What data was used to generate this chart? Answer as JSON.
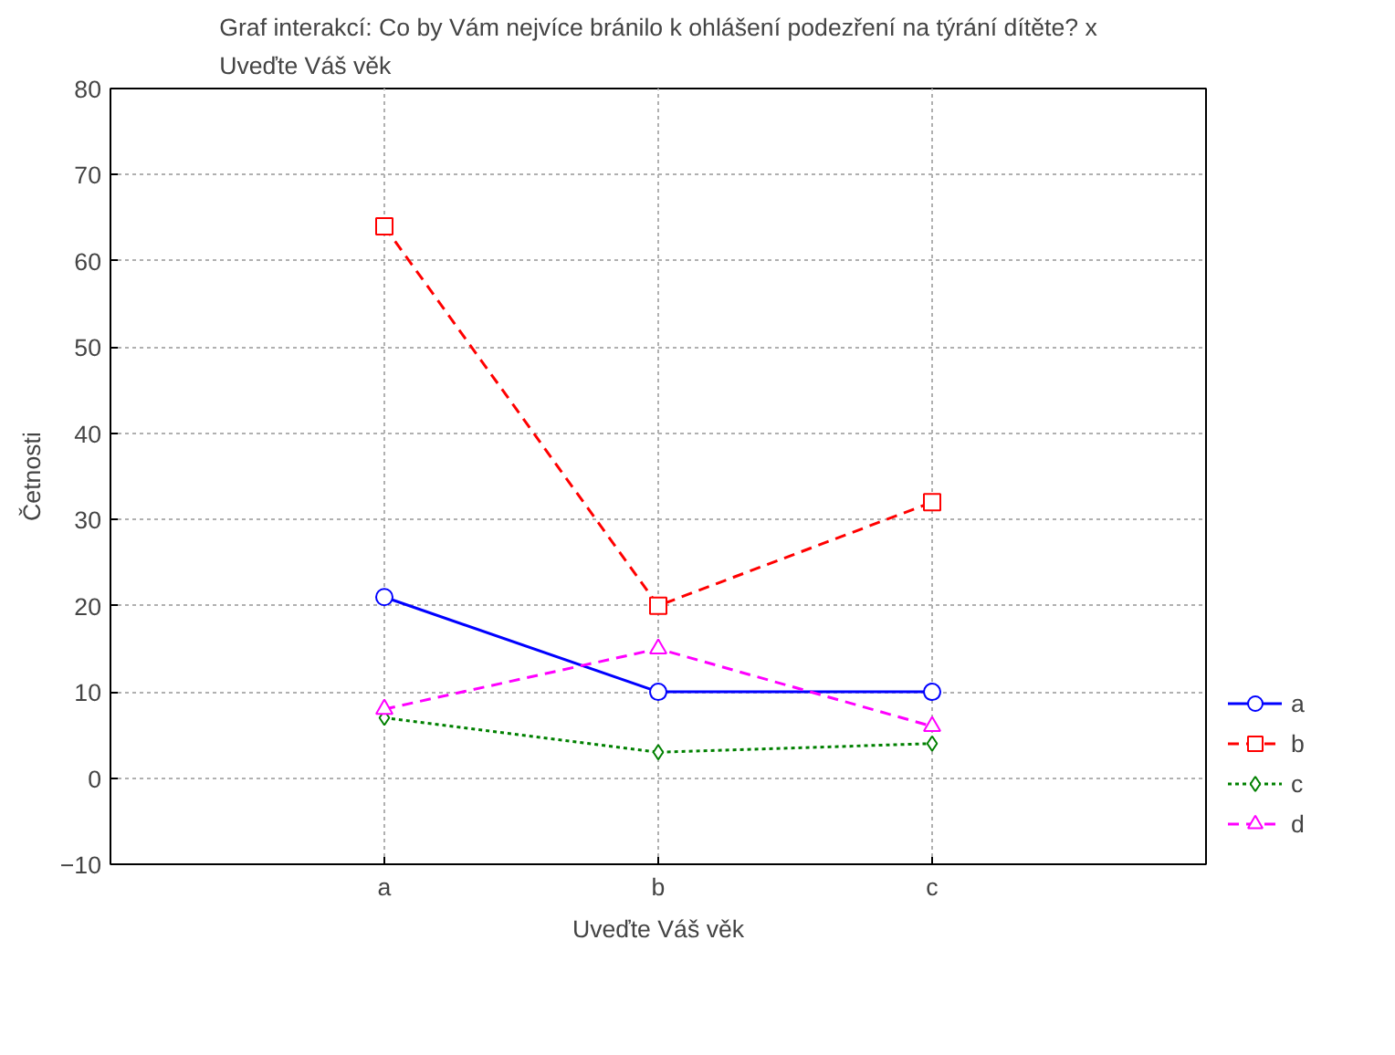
{
  "chart_data": {
    "type": "line",
    "title": "Graf interakcí: Co by Vám nejvíce bránilo k ohlášení podezření na týrání dítěte? x Uveďte Váš věk",
    "xlabel": "Uveďte Váš věk",
    "ylabel": "Četnosti",
    "categories": [
      "a",
      "b",
      "c"
    ],
    "series": [
      {
        "name": "a",
        "color": "#0000ff",
        "values": [
          21,
          10,
          10
        ],
        "marker": "circle",
        "line_style": "solid"
      },
      {
        "name": "b",
        "color": "#ff0000",
        "values": [
          64,
          20,
          32
        ],
        "marker": "square",
        "line_style": "dashed"
      },
      {
        "name": "c",
        "color": "#008000",
        "values": [
          7,
          3,
          4
        ],
        "marker": "diamond",
        "line_style": "dotted"
      },
      {
        "name": "d",
        "color": "#ff00ff",
        "values": [
          8,
          15,
          6
        ],
        "marker": "triangle",
        "line_style": "dashed"
      }
    ],
    "ylim": [
      -10,
      80
    ],
    "yticks": [
      -10,
      0,
      10,
      20,
      30,
      40,
      50,
      60,
      70,
      80
    ],
    "grid": true,
    "legend": "bottom right"
  }
}
